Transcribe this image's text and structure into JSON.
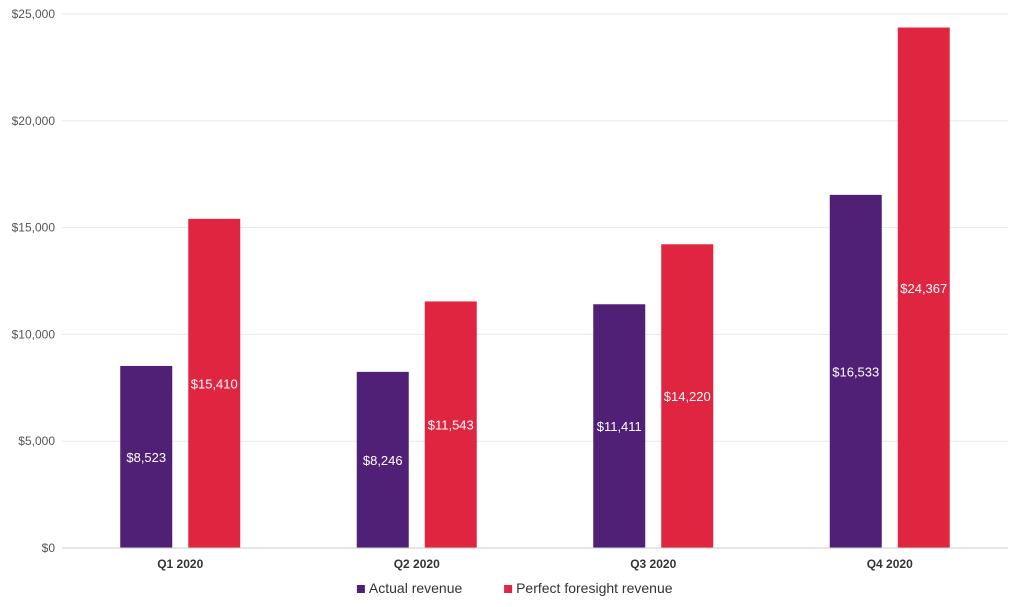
{
  "chart_data": {
    "type": "bar",
    "title": "",
    "xlabel": "",
    "ylabel": "",
    "categories": [
      "Q1 2020",
      "Q2 2020",
      "Q3 2020",
      "Q4 2020"
    ],
    "series": [
      {
        "name": "Actual revenue",
        "color": "#4f2075",
        "values": [
          8523,
          8246,
          11411,
          16533
        ],
        "labels": [
          "$8,523",
          "$8,246",
          "$11,411",
          "$16,533"
        ]
      },
      {
        "name": "Perfect foresight revenue",
        "color": "#e02541",
        "values": [
          15410,
          11543,
          14220,
          24367
        ],
        "labels": [
          "$15,410",
          "$11,543",
          "$14,220",
          "$24,367"
        ]
      }
    ],
    "ylim": [
      0,
      25000
    ],
    "yticks": [
      0,
      5000,
      10000,
      15000,
      20000,
      25000
    ],
    "ytick_labels": [
      "$0",
      "$5,000",
      "$10,000",
      "$15,000",
      "$20,000",
      "$25,000"
    ],
    "grid": true,
    "legend_position": "bottom"
  }
}
